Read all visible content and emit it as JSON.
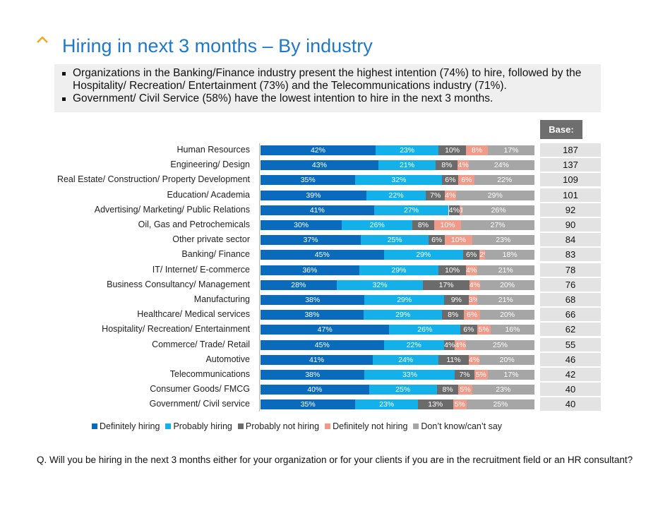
{
  "title": "Hiring in next 3 months – By industry",
  "bullets": [
    "Organizations in the Banking/Finance industry present the highest intention (74%) to hire, followed by the Hospitality/ Recreation/ Entertainment (73%) and the Telecommunications industry (71%).",
    "Government/ Civil Service (58%) have the lowest intention to hire in the next 3 months."
  ],
  "base_header": "Base:",
  "question": "Q. Will you be hiring in the next 3 months either for your organization or for your clients if you are in the recruitment field or an HR consultant?",
  "chart_data": {
    "type": "bar",
    "orientation": "horizontal",
    "stacked": true,
    "legend_position": "bottom",
    "categories": [
      "Human Resources",
      "Engineering/ Design",
      "Real Estate/ Construction/ Property Development",
      "Education/ Academia",
      "Advertising/ Marketing/ Public Relations",
      "Oil, Gas and Petrochemicals",
      "Other private sector",
      "Banking/ Finance",
      "IT/ Internet/ E-commerce",
      "Business Consultancy/ Management",
      "Manufacturing",
      "Healthcare/ Medical services",
      "Hospitality/ Recreation/ Entertainment",
      "Commerce/ Trade/ Retail",
      "Automotive",
      "Telecommunications",
      "Consumer Goods/ FMCG",
      "Government/ Civil service"
    ],
    "series": [
      {
        "name": "Definitely hiring",
        "color": "#0a6bbd",
        "values": [
          42,
          43,
          35,
          39,
          41,
          30,
          37,
          45,
          36,
          28,
          38,
          38,
          47,
          45,
          41,
          38,
          40,
          35
        ]
      },
      {
        "name": "Probably hiring",
        "color": "#13b0ea",
        "values": [
          23,
          21,
          32,
          22,
          27,
          26,
          25,
          29,
          29,
          32,
          29,
          29,
          26,
          22,
          24,
          33,
          25,
          23
        ]
      },
      {
        "name": "Probably not hiring",
        "color": "#6b6b6b",
        "values": [
          10,
          8,
          6,
          7,
          4,
          8,
          6,
          6,
          10,
          17,
          9,
          8,
          6,
          4,
          11,
          7,
          8,
          13
        ]
      },
      {
        "name": "Definitely not hiring",
        "color": "#f09a8a",
        "values": [
          8,
          4,
          6,
          4,
          1,
          10,
          10,
          2,
          4,
          4,
          3,
          6,
          5,
          4,
          4,
          5,
          5,
          5
        ]
      },
      {
        "name": "Don’t know/can’t say",
        "color": "#a6a6a6",
        "values": [
          17,
          24,
          22,
          29,
          26,
          27,
          23,
          18,
          21,
          20,
          21,
          20,
          16,
          25,
          20,
          17,
          23,
          25
        ]
      }
    ],
    "base": [
      187,
      137,
      109,
      101,
      92,
      90,
      84,
      83,
      78,
      76,
      68,
      66,
      62,
      55,
      46,
      42,
      40,
      40
    ]
  }
}
